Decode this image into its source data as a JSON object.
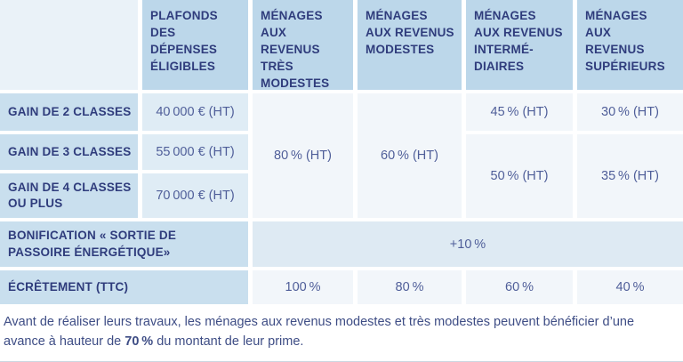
{
  "table": {
    "headers": {
      "plafonds": "PLAFONDS\nDES\nDÉPENSES\nÉLIGIBLES",
      "tres_modestes": "MÉNAGES AUX\nREVENUS TRÈS\nMODESTES",
      "modestes": "MÉNAGES\nAUX REVENUS\nMODESTES",
      "intermediaires": "MÉNAGES\nAUX REVENUS\nINTERMÉ-\nDIAIRES",
      "superieurs": "MÉNAGES\nAUX\nREVENUS\nSUPÉRIEURS"
    },
    "gain2": {
      "label": "GAIN DE 2 CLASSES",
      "plafond": "40 000 € (HT)",
      "intermediaires": "45 % (HT)",
      "superieurs": "30 % (HT)"
    },
    "gain3": {
      "label": "GAIN DE 3 CLASSES",
      "plafond": "55 000 € (HT)"
    },
    "gain4": {
      "label": "GAIN DE 4 CLASSES\nOU PLUS",
      "plafond": "70 000 € (HT)"
    },
    "merged": {
      "tres_modestes": "80 % (HT)",
      "modestes": "60 % (HT)",
      "intermediaires": "50 % (HT)",
      "superieurs": "35 % (HT)"
    },
    "bonification": {
      "label": "BONIFICATION « SORTIE DE\nPASSOIRE ÉNERGÉTIQUE»",
      "value": "+10 %"
    },
    "ecretement": {
      "label": "ÉCRÊTEMENT (TTC)",
      "tres_modestes": "100 %",
      "modestes": "80 %",
      "intermediaires": "60 %",
      "superieurs": "40 %"
    }
  },
  "footnote": {
    "line1": "Avant de réaliser leurs travaux, les ménages aux revenus modestes et très modestes peuvent bénéficier d’une",
    "line2_before": "avance à hauteur de ",
    "line2_bold": "70 %",
    "line2_after": " du montant de leur prime."
  },
  "colors": {
    "header_bg": "#bcd7ea",
    "row_label_bg": "#c9dfee",
    "corner_bg": "#eaf2f8",
    "plafond_value_bg": "#dfecf5",
    "bonification_value_bg": "#deeaf3",
    "percent_value_bg": "#f2f6fa",
    "label_text": "#2f3c7c",
    "value_text": "#4f5e99",
    "footnote_text": "#3e4d85"
  }
}
